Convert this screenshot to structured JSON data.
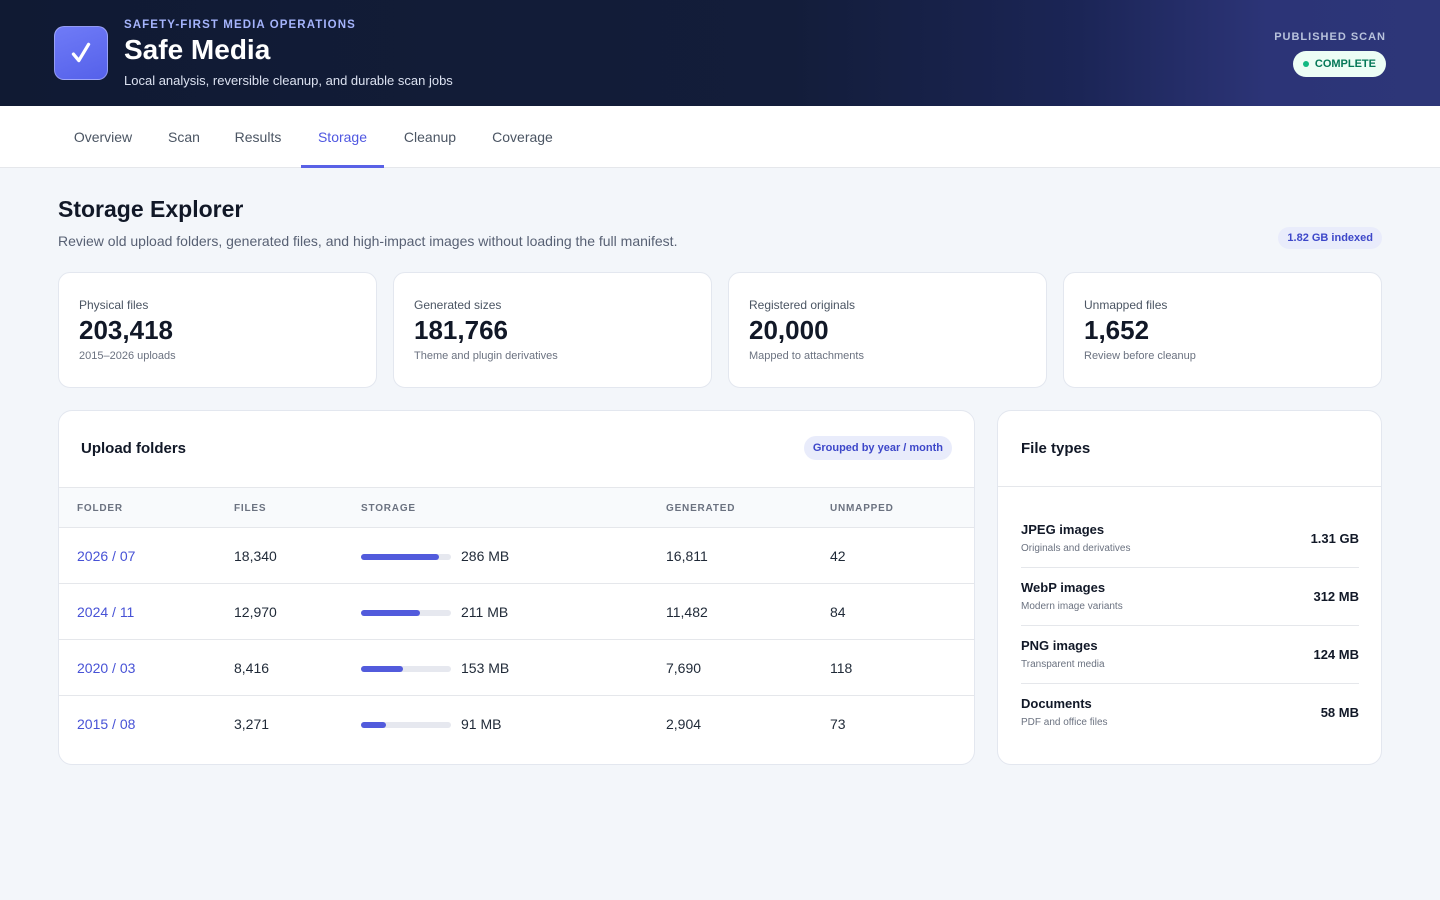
{
  "header": {
    "eyebrow": "SAFETY-FIRST MEDIA OPERATIONS",
    "title": "Safe Media",
    "subtitle": "Local analysis, reversible cleanup, and durable scan jobs",
    "scan_label": "PUBLISHED SCAN",
    "scan_status": "COMPLETE",
    "logo_icon": "check-icon"
  },
  "tabs": [
    {
      "label": "Overview",
      "active": false
    },
    {
      "label": "Scan",
      "active": false
    },
    {
      "label": "Results",
      "active": false
    },
    {
      "label": "Storage",
      "active": true
    },
    {
      "label": "Cleanup",
      "active": false
    },
    {
      "label": "Coverage",
      "active": false
    }
  ],
  "page": {
    "title": "Storage Explorer",
    "description": "Review old upload folders, generated files, and high-impact images without loading the full manifest.",
    "indexed_badge": "1.82 GB indexed"
  },
  "stats": [
    {
      "label": "Physical files",
      "value": "203,418",
      "note": "2015–2026 uploads"
    },
    {
      "label": "Generated sizes",
      "value": "181,766",
      "note": "Theme and plugin derivatives"
    },
    {
      "label": "Registered originals",
      "value": "20,000",
      "note": "Mapped to attachments"
    },
    {
      "label": "Unmapped files",
      "value": "1,652",
      "note": "Review before cleanup"
    }
  ],
  "upload_folders": {
    "title": "Upload folders",
    "badge": "Grouped by year / month",
    "columns": [
      "FOLDER",
      "FILES",
      "STORAGE",
      "GENERATED",
      "UNMAPPED"
    ],
    "rows": [
      {
        "folder": "2026 / 07",
        "files": "18,340",
        "storage": "286 MB",
        "storage_fraction": 0.87,
        "generated": "16,811",
        "unmapped": "42"
      },
      {
        "folder": "2024 / 11",
        "files": "12,970",
        "storage": "211 MB",
        "storage_fraction": 0.65,
        "generated": "11,482",
        "unmapped": "84"
      },
      {
        "folder": "2020 / 03",
        "files": "8,416",
        "storage": "153 MB",
        "storage_fraction": 0.47,
        "generated": "7,690",
        "unmapped": "118"
      },
      {
        "folder": "2015 / 08",
        "files": "3,271",
        "storage": "91 MB",
        "storage_fraction": 0.28,
        "generated": "2,904",
        "unmapped": "73"
      }
    ]
  },
  "file_types": {
    "title": "File types",
    "items": [
      {
        "name": "JPEG images",
        "note": "Originals and derivatives",
        "size": "1.31 GB"
      },
      {
        "name": "WebP images",
        "note": "Modern image variants",
        "size": "312 MB"
      },
      {
        "name": "PNG images",
        "note": "Transparent media",
        "size": "124 MB"
      },
      {
        "name": "Documents",
        "note": "PDF and office files",
        "size": "58 MB"
      }
    ]
  },
  "colors": {
    "accent": "#5961e6",
    "header_bg": "#101a33",
    "status_green": "#10b981",
    "bar_fill": "#525bdc"
  }
}
